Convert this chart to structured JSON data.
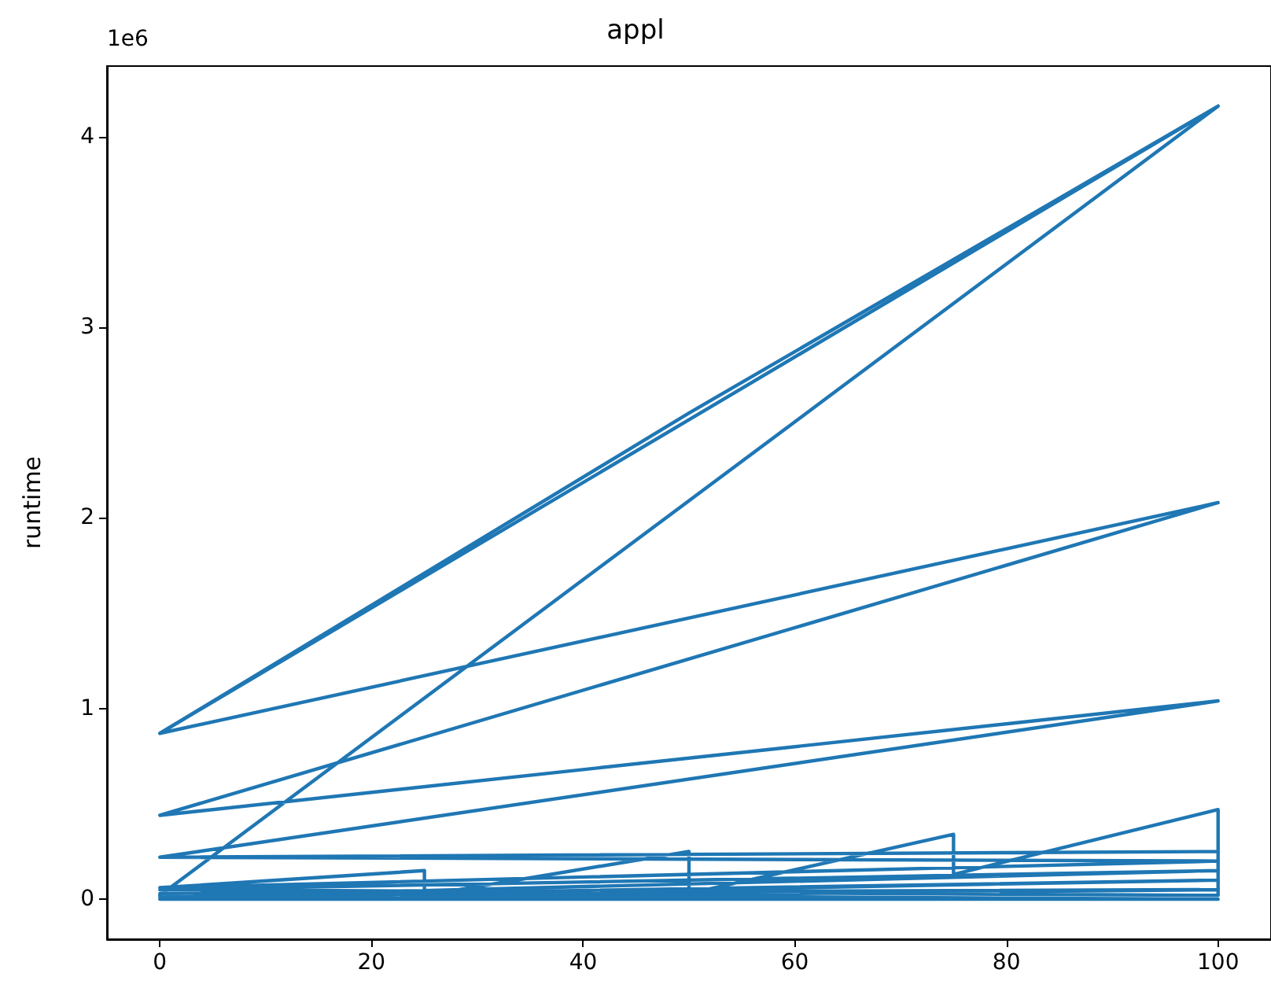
{
  "chart_data": {
    "type": "line",
    "title": "appl",
    "ylabel": "runtime",
    "annotations": [
      "1e6"
    ],
    "xlim": [
      -5,
      105
    ],
    "xticks": [
      0,
      20,
      40,
      60,
      80,
      100
    ],
    "ylim": [
      -0.21,
      4.37
    ],
    "yticks": [
      0,
      1,
      2,
      3,
      4
    ],
    "grid": false,
    "marker": "none",
    "line_style": "solid",
    "series": [
      {
        "color": "#1f77b4",
        "x": [
          0,
          50,
          100,
          0,
          100,
          0,
          100,
          0,
          100,
          0,
          100,
          0,
          100,
          0,
          100,
          0,
          100,
          0,
          100,
          0,
          25,
          25,
          50,
          50,
          75,
          75,
          100,
          100,
          0,
          100,
          0,
          100,
          0,
          100,
          0,
          100,
          0
        ],
        "values": [
          0.87,
          2.55,
          4.16,
          0.87,
          4.16,
          0.02,
          4.16,
          0.87,
          2.08,
          0.44,
          2.08,
          0.44,
          1.04,
          0.22,
          1.04,
          0.22,
          0.25,
          0.22,
          0.2,
          0.06,
          0.15,
          0.02,
          0.25,
          0.03,
          0.34,
          0.13,
          0.47,
          0.02,
          0.05,
          0.15,
          0.01,
          0.1,
          0,
          0.05,
          0.03,
          0,
          0
        ]
      }
    ]
  }
}
